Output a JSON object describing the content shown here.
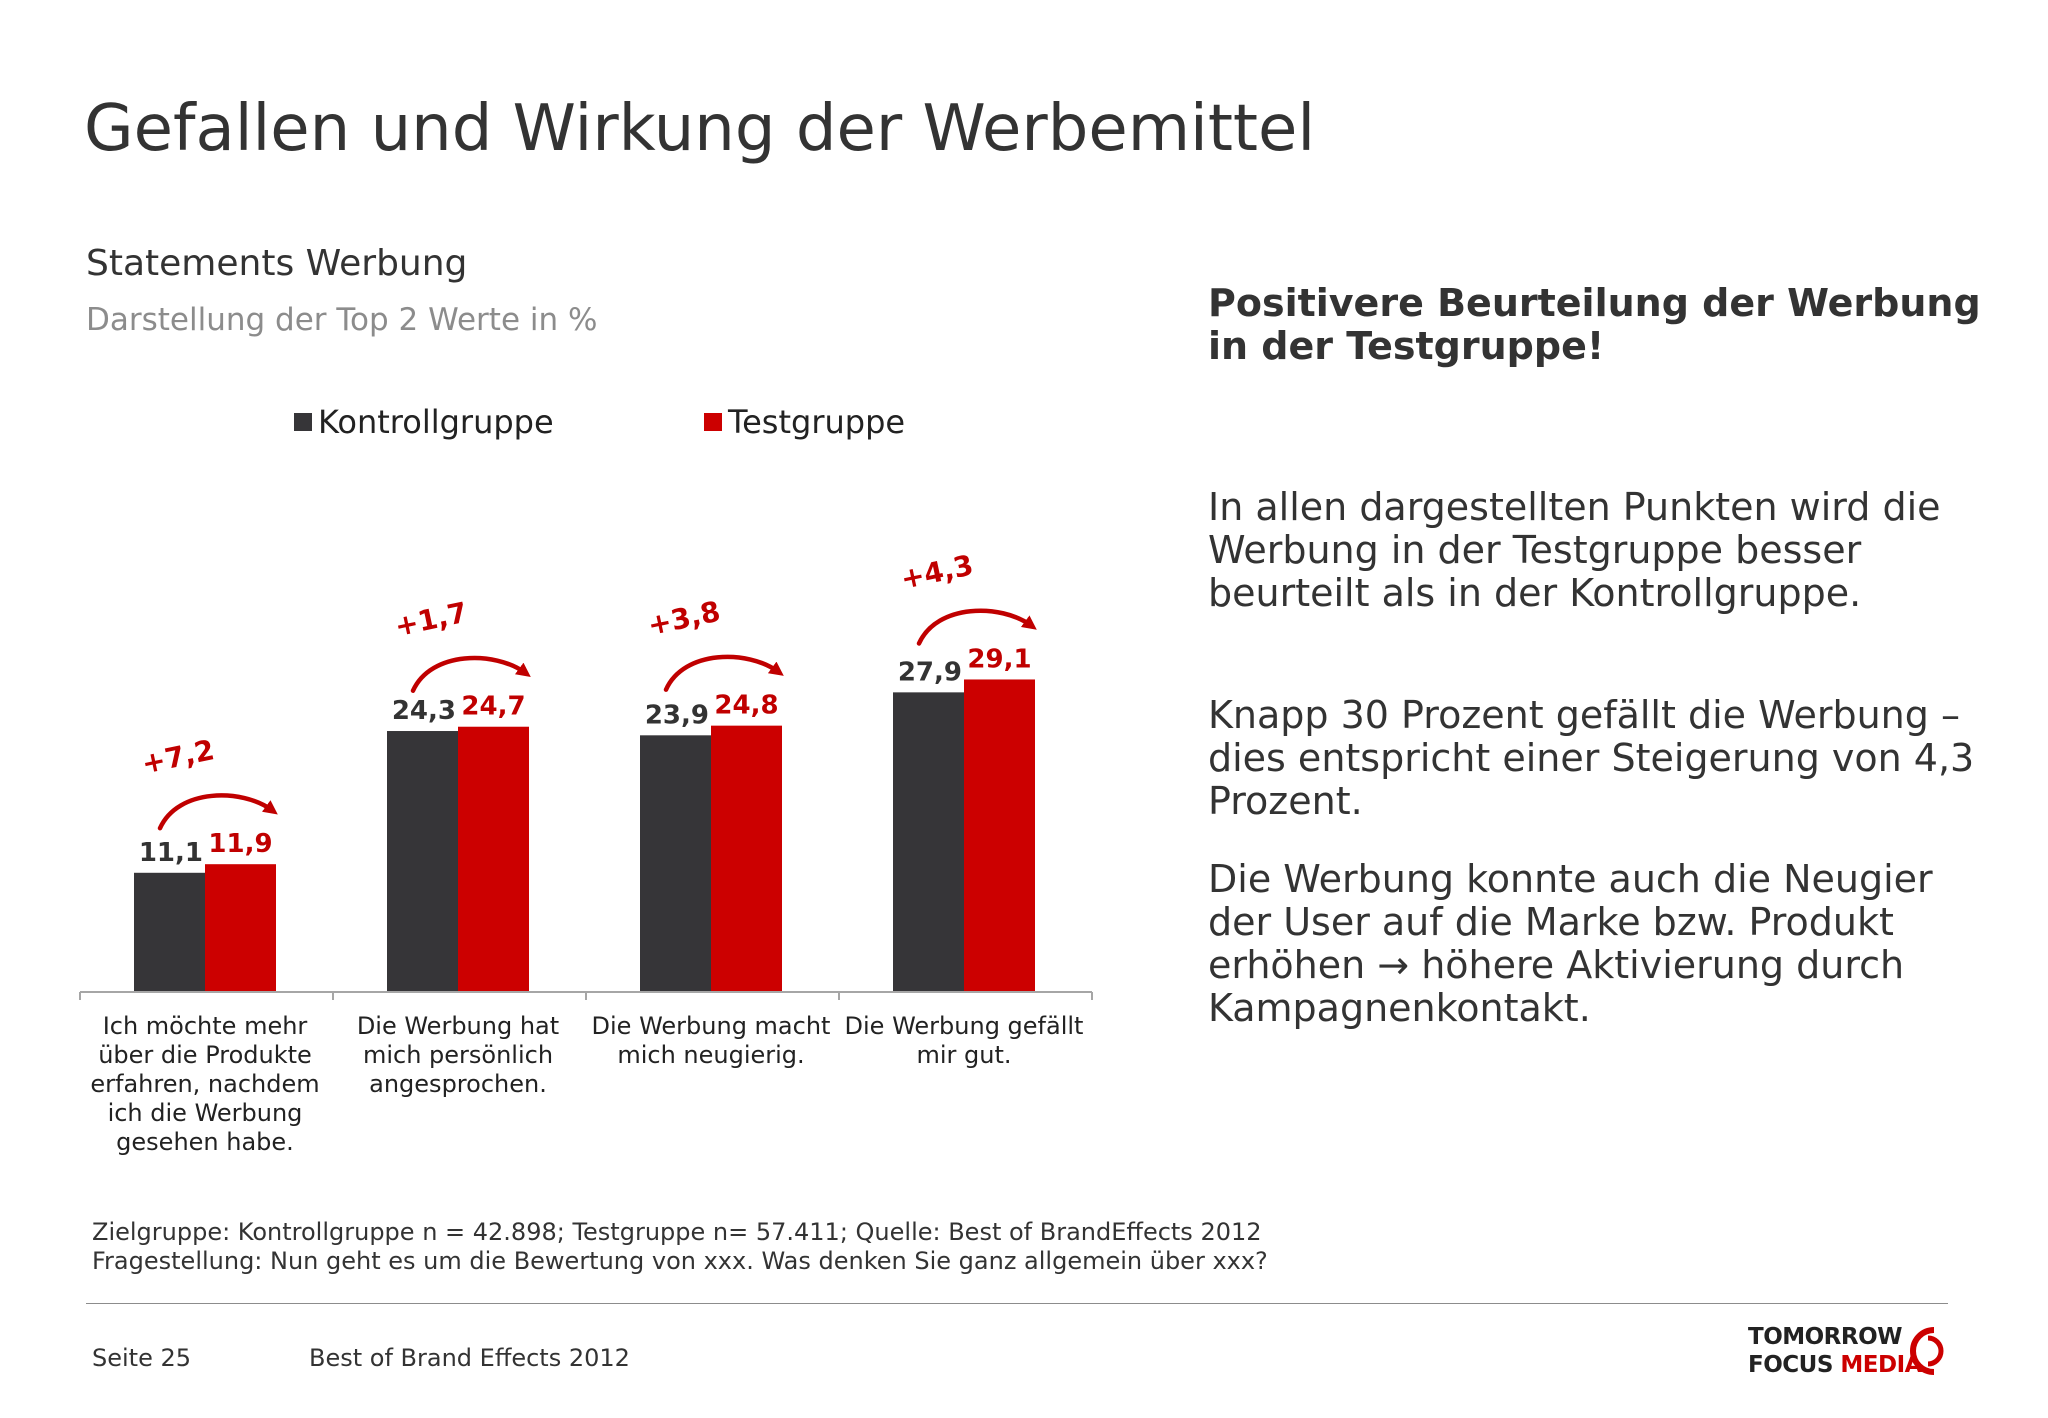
{
  "title": "Gefallen und Wirkung der Werbemittel",
  "subtitle": "Statements Werbung",
  "subtitle2": "Darstellung der Top 2 Werte in %",
  "colors": {
    "kontrollgruppe": "#363538",
    "testgruppe": "#cc0000",
    "delta": "#c00000",
    "text": "#333333"
  },
  "chart_data": {
    "type": "bar",
    "categories": [
      "Ich möchte mehr über die Produkte erfahren, nachdem ich die Werbung gesehen habe.",
      "Die Werbung hat mich persönlich angesprochen.",
      "Die Werbung macht mich neugierig.",
      "Die Werbung gefällt mir gut."
    ],
    "category_lines": [
      [
        "Ich möchte mehr",
        "über die Produkte",
        "erfahren, nachdem",
        "ich die Werbung",
        "gesehen habe."
      ],
      [
        "Die Werbung hat",
        "mich persönlich",
        "angesprochen."
      ],
      [
        "Die Werbung macht",
        "mich neugierig."
      ],
      [
        "Die Werbung gefällt",
        "mir gut."
      ]
    ],
    "series": [
      {
        "name": "Kontrollgruppe",
        "values": [
          11.1,
          24.3,
          23.9,
          27.9
        ],
        "labels": [
          "11,1",
          "24,3",
          "23,9",
          "27,9"
        ]
      },
      {
        "name": "Testgruppe",
        "values": [
          11.9,
          24.7,
          24.8,
          29.1
        ],
        "labels": [
          "11,9",
          "24,7",
          "24,8",
          "29,1"
        ]
      }
    ],
    "deltas": [
      "+7,2",
      "+1,7",
      "+3,8",
      "+4,3"
    ],
    "ylim": [
      0,
      40
    ],
    "legend_position": "top",
    "grid": false
  },
  "headline": "Positivere Beurteilung der Werbung in der Testgruppe!",
  "paragraphs": [
    "In allen dargestellten Punkten wird die Werbung in der Testgruppe besser beurteilt als in der Kontrollgruppe.",
    "Knapp 30 Prozent gefällt die Werbung – dies entspricht einer Steigerung von 4,3 Prozent.",
    "Die Werbung konnte auch die Neugier der User auf die Marke bzw. Produkt erhöhen → höhere Aktivierung durch Kampagnenkontakt."
  ],
  "footnotes": [
    "Zielgruppe: Kontrollgruppe n = 42.898; Testgruppe n= 57.411; Quelle: Best of BrandEffects 2012",
    "Fragestellung: Nun geht es um die Bewertung von xxx. Was denken Sie ganz allgemein über xxx?"
  ],
  "footer": {
    "page": "Seite 25",
    "doc": "Best of Brand Effects 2012"
  },
  "logo": {
    "line1": "TOMORROW",
    "line2a": "FOCUS ",
    "line2b": "MEDIA"
  }
}
